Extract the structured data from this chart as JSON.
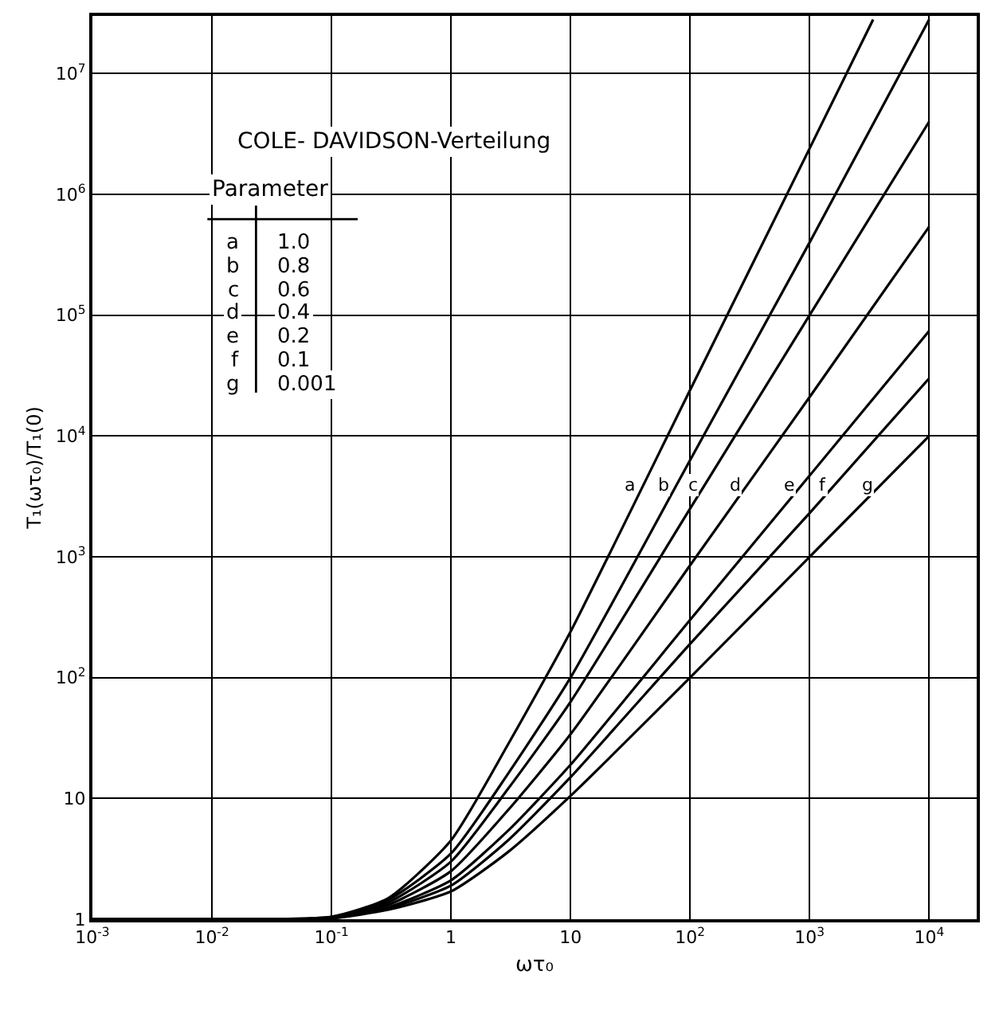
{
  "chart_data": {
    "type": "line",
    "title": "COLE- DAVIDSON-Verteilung",
    "xlabel": "ωτ₀",
    "ylabel": "T₁(ωτ₀)/T₁(0)",
    "annotations": [
      "Parameter",
      "a",
      "1.0",
      "b",
      "0.8",
      "c",
      "0.6",
      "d",
      "0.4",
      "e",
      "0.2",
      "f",
      "0.1",
      "g",
      "0.001"
    ],
    "log": "xy",
    "grid": true,
    "marker": "none",
    "line_style": "solid",
    "xlim": [
      0.001,
      25000
    ],
    "ylim": [
      1,
      30000000
    ],
    "xticks": [
      {
        "value": 0.001,
        "label": "10$^{-3}$"
      },
      {
        "value": 0.01,
        "label": "10$^{-2}$"
      },
      {
        "value": 0.1,
        "label": "10$^{-1}$"
      },
      1,
      10,
      {
        "value": 100,
        "label": "10$^{2}$"
      },
      {
        "value": 1000,
        "label": "10$^{3}$"
      },
      {
        "value": 10000,
        "label": "10$^{4}$"
      }
    ],
    "yticks": [
      1,
      10,
      {
        "value": 100,
        "label": "10$^{2}$"
      },
      {
        "value": 1000,
        "label": "10$^{3}$"
      },
      {
        "value": 10000,
        "label": "10$^{4}$"
      },
      {
        "value": 100000,
        "label": "10$^{5}$"
      },
      {
        "value": 1000000,
        "label": "10$^{6}$"
      },
      {
        "value": 10000000,
        "label": "10$^{7}$"
      }
    ],
    "series": [
      {
        "name": "a",
        "color": "#000000",
        "x": [
          0.001,
          0.01,
          0.1,
          0.3,
          1,
          3,
          10,
          100,
          1000,
          3400
        ],
        "values": [
          1,
          1,
          1.05,
          1.5,
          4.5,
          28,
          240,
          24000,
          2400000,
          28000000
        ]
      },
      {
        "name": "b",
        "color": "#000000",
        "x": [
          0.001,
          0.01,
          0.1,
          0.3,
          1,
          3,
          10,
          100,
          1000,
          10000
        ],
        "values": [
          1,
          1,
          1.04,
          1.45,
          3.5,
          16,
          100,
          6300,
          400000,
          28000000
        ]
      },
      {
        "name": "c",
        "color": "#000000",
        "x": [
          0.001,
          0.01,
          0.1,
          0.3,
          1,
          3,
          10,
          100,
          1000,
          10000
        ],
        "values": [
          1,
          1,
          1.03,
          1.38,
          3,
          12,
          63,
          2500,
          100000,
          4000000
        ]
      },
      {
        "name": "d",
        "color": "#000000",
        "x": [
          0.001,
          0.01,
          0.1,
          0.3,
          1,
          3,
          10,
          100,
          1000,
          10000
        ],
        "values": [
          1,
          1,
          1.03,
          1.32,
          2.5,
          8,
          34,
          850,
          21000,
          540000
        ]
      },
      {
        "name": "e",
        "color": "#000000",
        "x": [
          0.001,
          0.01,
          0.1,
          0.3,
          1,
          3,
          10,
          100,
          1000,
          10000
        ],
        "values": [
          1,
          1,
          1.02,
          1.26,
          2.1,
          5.4,
          19,
          300,
          4700,
          74000
        ]
      },
      {
        "name": "f",
        "color": "#000000",
        "x": [
          0.001,
          0.01,
          0.1,
          0.3,
          1,
          3,
          10,
          100,
          1000,
          10000
        ],
        "values": [
          1,
          1,
          1.02,
          1.23,
          1.9,
          4.5,
          15,
          190,
          2300,
          30000
        ]
      },
      {
        "name": "g",
        "color": "#000000",
        "x": [
          0.001,
          0.01,
          0.1,
          0.3,
          1,
          3,
          10,
          100,
          1000,
          10000
        ],
        "values": [
          1,
          1,
          1.02,
          1.2,
          1.7,
          3.6,
          10.5,
          100,
          1000,
          10000
        ]
      }
    ]
  }
}
